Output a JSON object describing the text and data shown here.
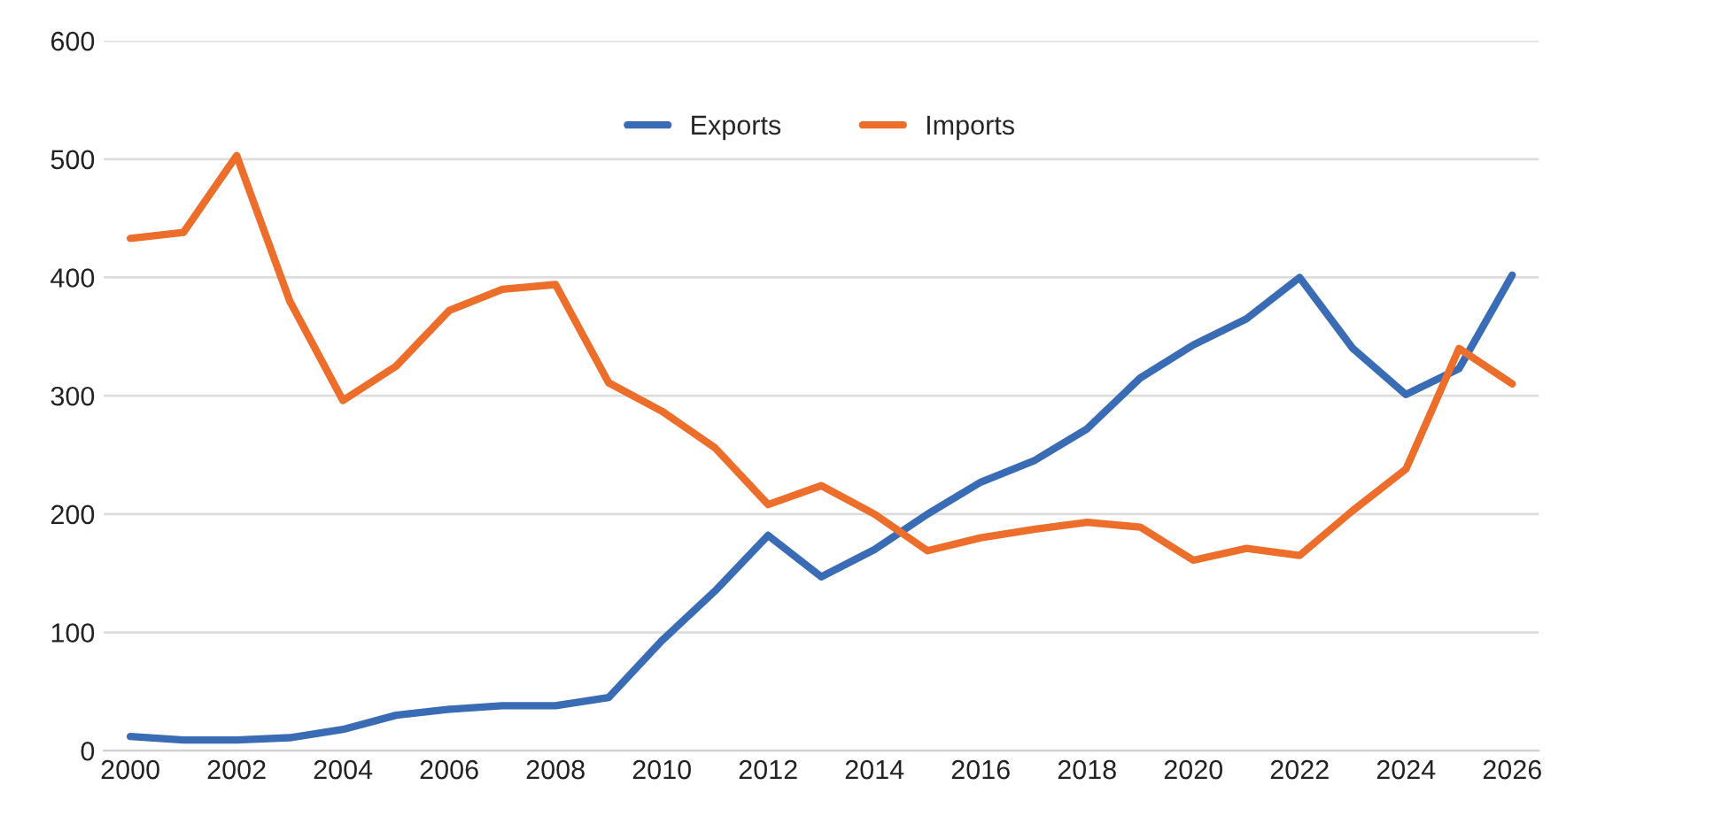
{
  "chart_data": {
    "type": "line",
    "x": [
      2000,
      2001,
      2002,
      2003,
      2004,
      2005,
      2006,
      2007,
      2008,
      2009,
      2010,
      2011,
      2012,
      2013,
      2014,
      2015,
      2016,
      2017,
      2018,
      2019,
      2020,
      2021,
      2022,
      2023,
      2024,
      2025,
      2026
    ],
    "series": [
      {
        "name": "Exports",
        "color": "#3a6bb5",
        "values": [
          12,
          9,
          9,
          11,
          18,
          30,
          35,
          38,
          38,
          45,
          93,
          135,
          182,
          147,
          170,
          200,
          227,
          245,
          272,
          315,
          343,
          365,
          400,
          340,
          301,
          323,
          402
        ]
      },
      {
        "name": "Imports",
        "color": "#ed6d2a",
        "values": [
          433,
          438,
          503,
          380,
          296,
          325,
          372,
          390,
          394,
          311,
          287,
          256,
          208,
          224,
          200,
          169,
          180,
          187,
          193,
          189,
          161,
          171,
          165,
          203,
          238,
          340,
          310
        ]
      }
    ],
    "xlim": [
      1999.5,
      2026.5
    ],
    "xticks": [
      2000,
      2002,
      2004,
      2006,
      2008,
      2010,
      2012,
      2014,
      2016,
      2018,
      2020,
      2022,
      2024,
      2026
    ],
    "ylim": [
      0,
      600
    ],
    "yticks": [
      0,
      100,
      200,
      300,
      400,
      500,
      600
    ],
    "grid": "y",
    "legend": "top",
    "marker": "none",
    "line_style": "solid"
  }
}
